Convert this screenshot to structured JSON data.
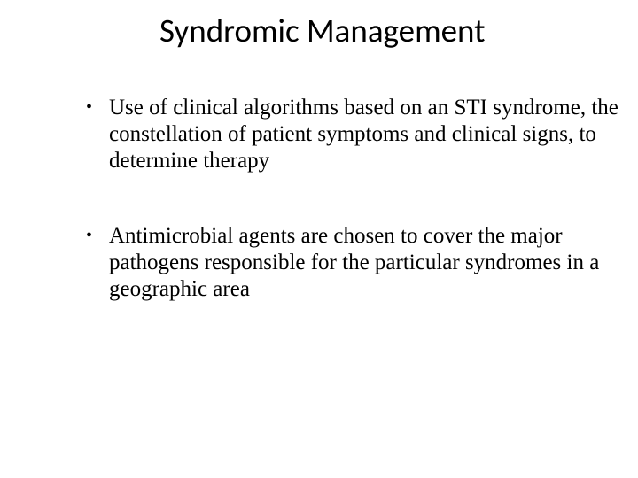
{
  "slide": {
    "title": "Syndromic Management",
    "title_fontsize": 37,
    "title_font_family": "Calibri, sans-serif",
    "title_color": "#000000",
    "bullets": [
      "Use of clinical algorithms based on an STI syndrome, the constellation of patient symptoms and clinical signs, to determine therapy",
      "Antimicrobial agents are chosen to cover the major pathogens responsible for the  particular syndromes in a geographic area"
    ],
    "bullet_fontsize": 25,
    "bullet_font_family": "Times New Roman, serif",
    "bullet_color": "#000000",
    "bullet_marker": "•",
    "background_color": "#ffffff"
  }
}
